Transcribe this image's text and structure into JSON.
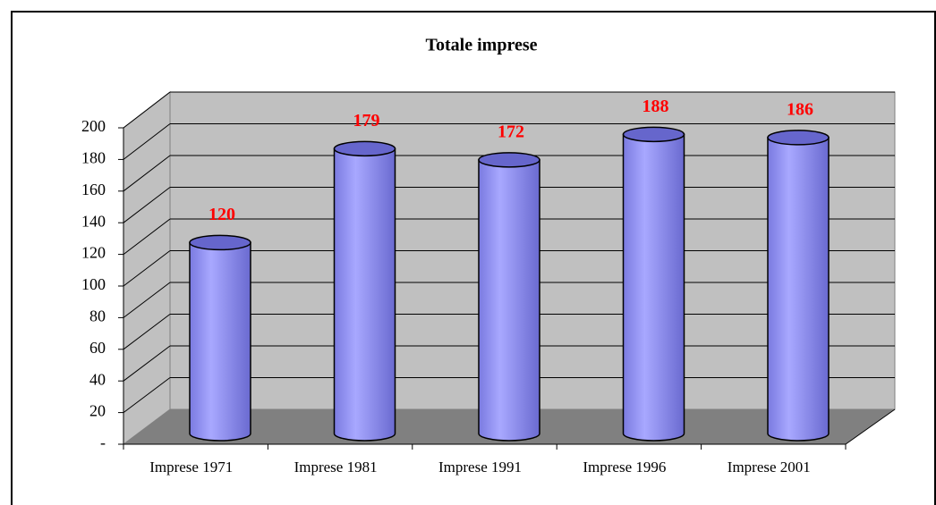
{
  "chart_data": {
    "type": "cylinder",
    "title": "Totale imprese",
    "categories": [
      "Imprese 1971",
      "Imprese 1981",
      "Imprese 1991",
      "Imprese 1996",
      "Imprese 2001"
    ],
    "values": [
      120,
      179,
      172,
      188,
      186
    ],
    "color": "#9999ff",
    "label_color": "#ff0000",
    "ylim": [
      0,
      200
    ],
    "yticks": [
      {
        "value": 0,
        "label": "-"
      },
      20,
      40,
      60,
      80,
      100,
      120,
      140,
      160,
      180,
      200
    ],
    "grid": true
  }
}
